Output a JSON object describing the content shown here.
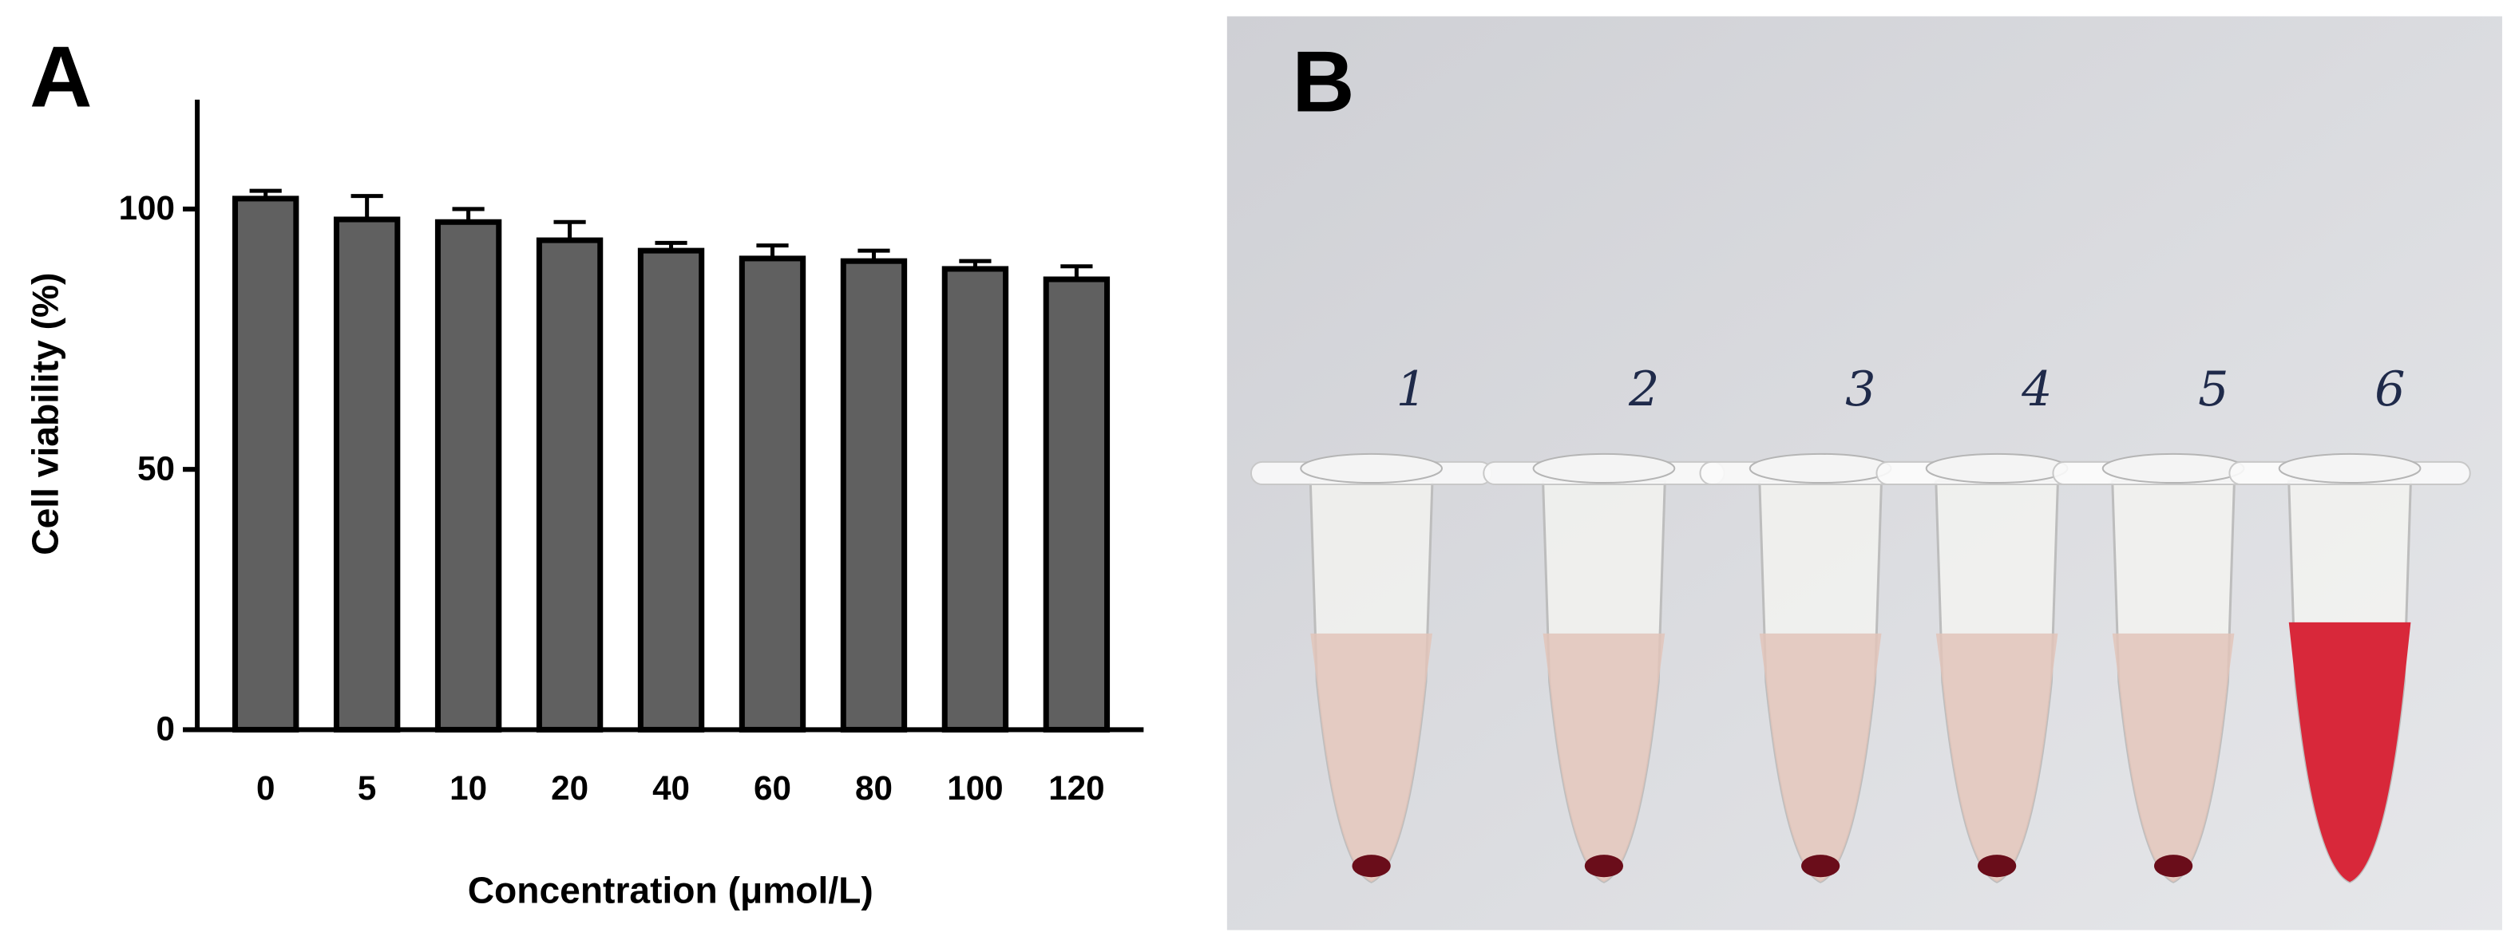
{
  "panel_labels": [
    "A",
    "B"
  ],
  "chart_data": {
    "type": "bar",
    "ylabel": "Cell viability (%)",
    "xlabel": "Concentration (μmol/L)",
    "categories": [
      "0",
      "5",
      "10",
      "20",
      "40",
      "60",
      "80",
      "100",
      "120"
    ],
    "values": [
      102,
      98,
      97.5,
      94,
      92,
      90.5,
      90,
      88.5,
      86.5
    ],
    "errors": [
      1.5,
      4.5,
      2.5,
      3.5,
      1.5,
      2.5,
      2,
      1.5,
      2.5
    ],
    "color": "#606060",
    "ylim": [
      0,
      121
    ],
    "yticks": [
      0,
      50,
      100
    ]
  },
  "photo": {
    "tube_labels": [
      "1",
      "2",
      "3",
      "4",
      "5",
      "6"
    ]
  }
}
